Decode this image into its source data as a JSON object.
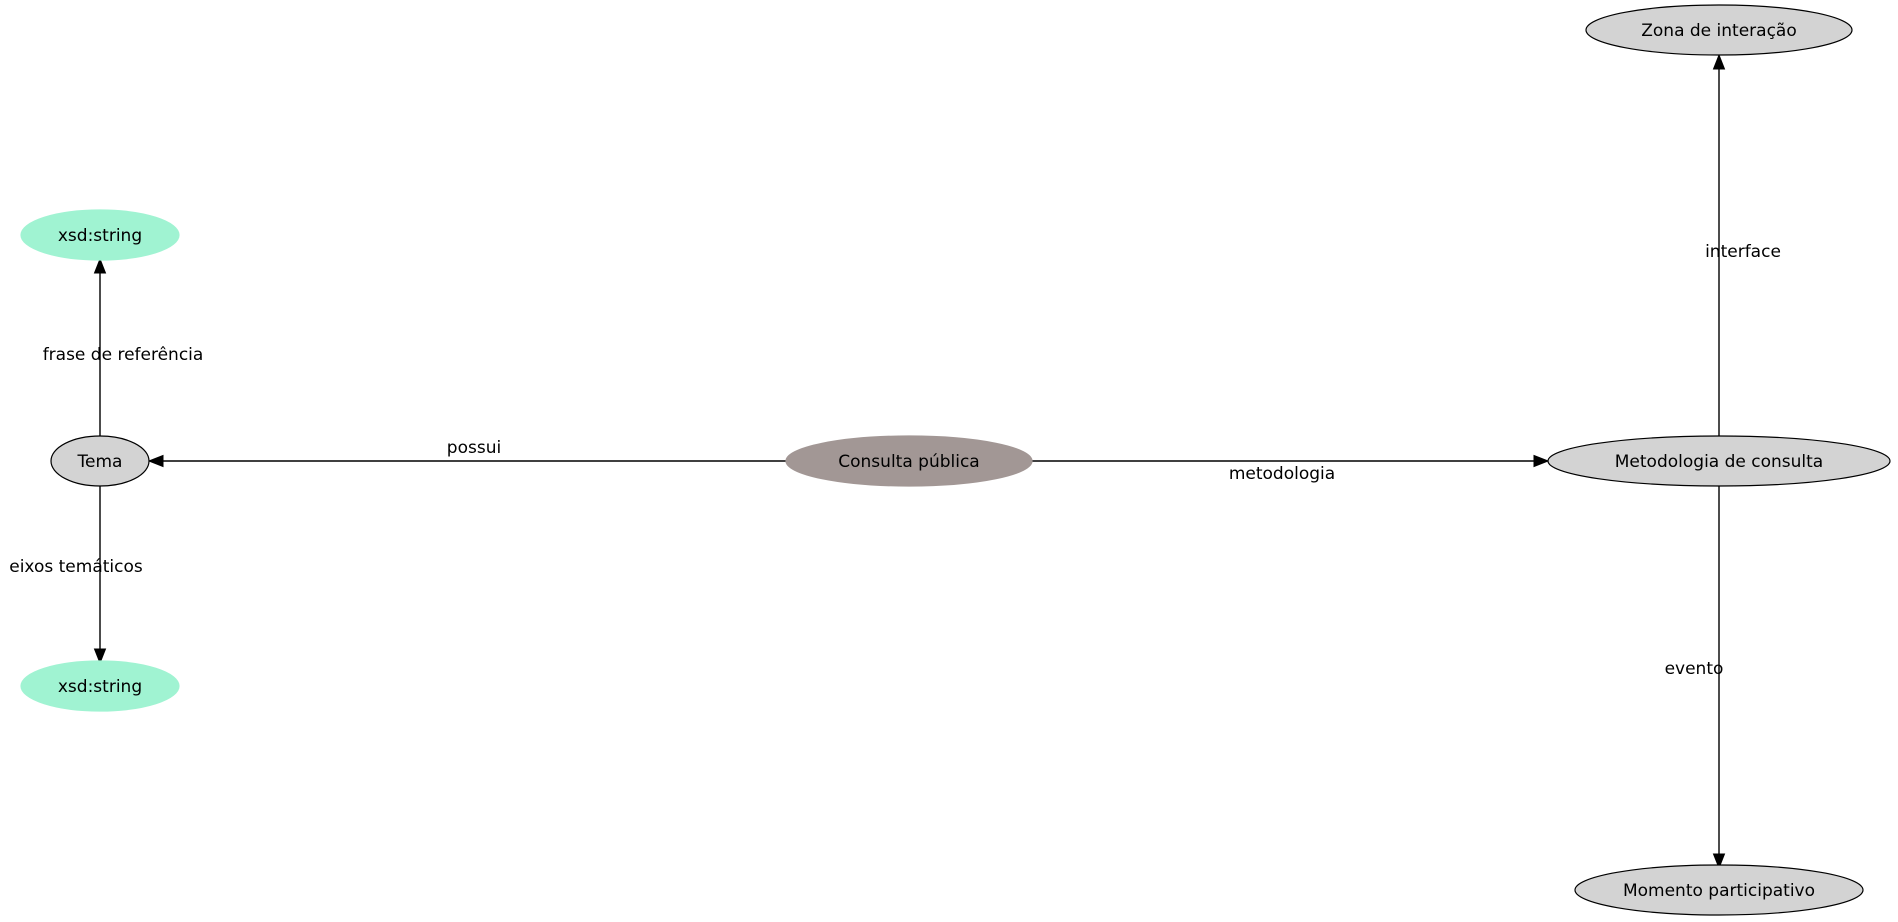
{
  "colors": {
    "node_default": "#d3d3d3",
    "node_central": "#a29795",
    "node_literal": "#a0f3d2",
    "stroke": "#000000",
    "text": "#000000"
  },
  "nodes": {
    "consulta": "Consulta pública",
    "tema": "Tema",
    "metodologia": "Metodologia de consulta",
    "zona": "Zona de interação",
    "momento": "Momento participativo",
    "xsd_top": "xsd:string",
    "xsd_bottom": "xsd:string"
  },
  "edges": {
    "possui": "possui",
    "metodologia": "metodologia",
    "interface": "interface",
    "evento": "evento",
    "frase": "frase de referência",
    "eixos": "eixos temáticos"
  }
}
